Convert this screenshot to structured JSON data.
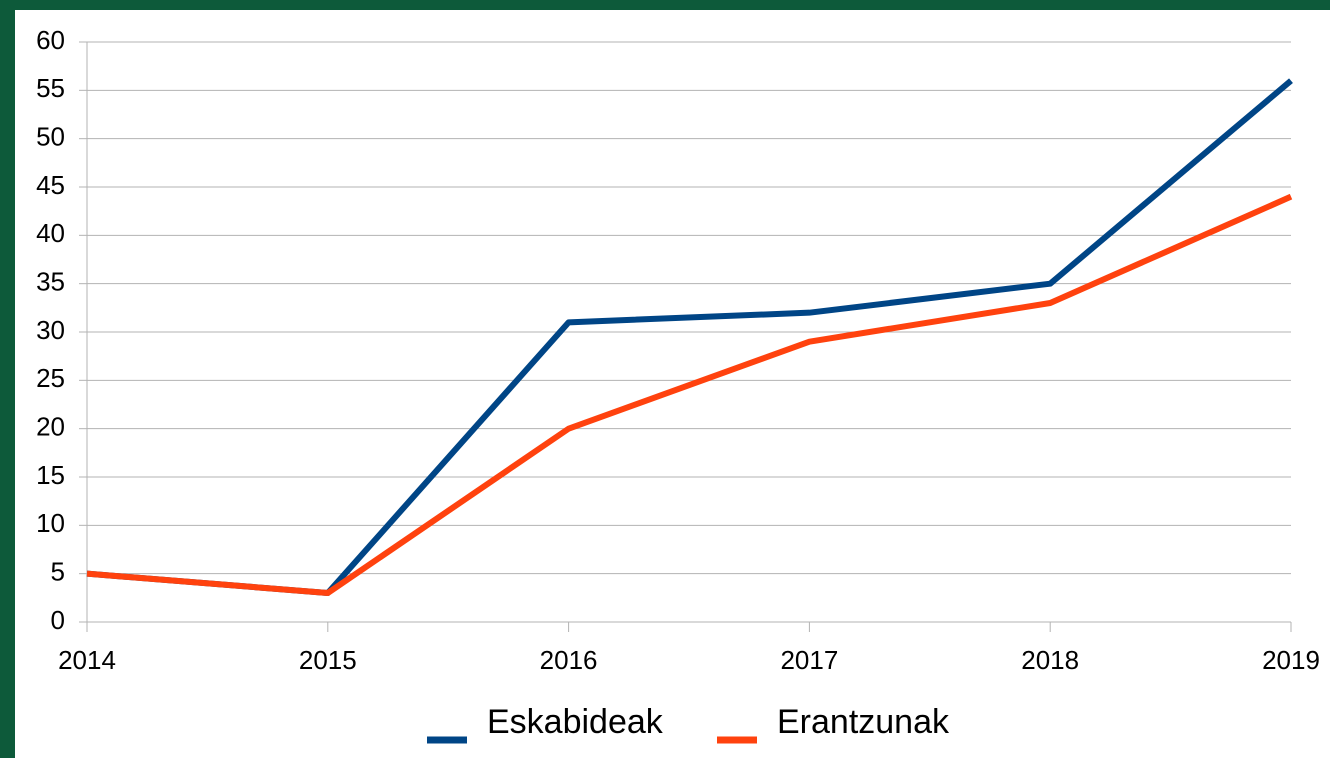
{
  "chart_data": {
    "type": "line",
    "categories": [
      "2014",
      "2015",
      "2016",
      "2017",
      "2018",
      "2019"
    ],
    "series": [
      {
        "name": "Eskabideak",
        "color": "#004586",
        "values": [
          5,
          3,
          31,
          32,
          35,
          56
        ]
      },
      {
        "name": "Erantzunak",
        "color": "#ff420e",
        "values": [
          5,
          3,
          20,
          29,
          33,
          44
        ]
      }
    ],
    "ylim": [
      0,
      60
    ],
    "yticks": [
      0,
      5,
      10,
      15,
      20,
      25,
      30,
      35,
      40,
      45,
      50,
      55,
      60
    ],
    "grid": true,
    "legend": "bottom"
  }
}
